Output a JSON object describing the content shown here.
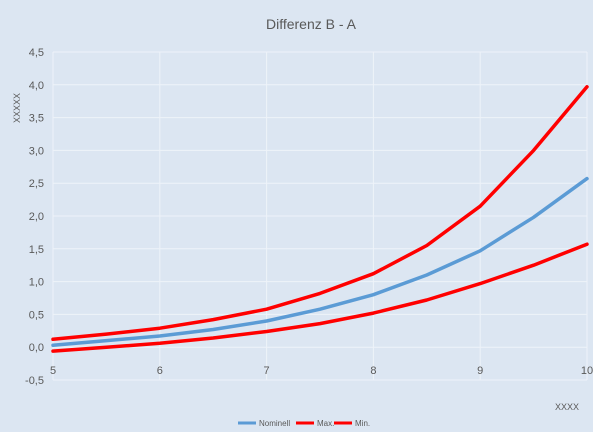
{
  "chart_data": {
    "type": "line",
    "title": "Differenz  B - A",
    "xlabel": "XXXX",
    "ylabel": "XXXXX",
    "xlim": [
      5,
      10
    ],
    "ylim": [
      -0.5,
      4.5
    ],
    "x_ticks": [
      "5",
      "6",
      "7",
      "8",
      "9",
      "10"
    ],
    "y_ticks": [
      "-0,5",
      "0,0",
      "0,5",
      "1,0",
      "1,5",
      "2,0",
      "2,5",
      "3,0",
      "3,5",
      "4,0",
      "4,5"
    ],
    "grid": true,
    "legend_position": "bottom",
    "x": [
      5,
      5.5,
      6,
      6.5,
      7,
      7.5,
      8,
      8.5,
      9,
      9.5,
      10
    ],
    "series": [
      {
        "name": "Nominell",
        "color": "#5b9bd5",
        "values": [
          0.03,
          0.1,
          0.17,
          0.27,
          0.4,
          0.58,
          0.8,
          1.1,
          1.47,
          1.98,
          2.57
        ]
      },
      {
        "name": "Max.",
        "color": "#ff0000",
        "values": [
          0.12,
          0.2,
          0.29,
          0.42,
          0.58,
          0.82,
          1.12,
          1.55,
          2.15,
          3.0,
          3.97
        ]
      },
      {
        "name": "Min.",
        "color": "#ff0000",
        "values": [
          -0.06,
          0.0,
          0.06,
          0.14,
          0.24,
          0.36,
          0.52,
          0.72,
          0.97,
          1.25,
          1.57
        ]
      }
    ]
  }
}
